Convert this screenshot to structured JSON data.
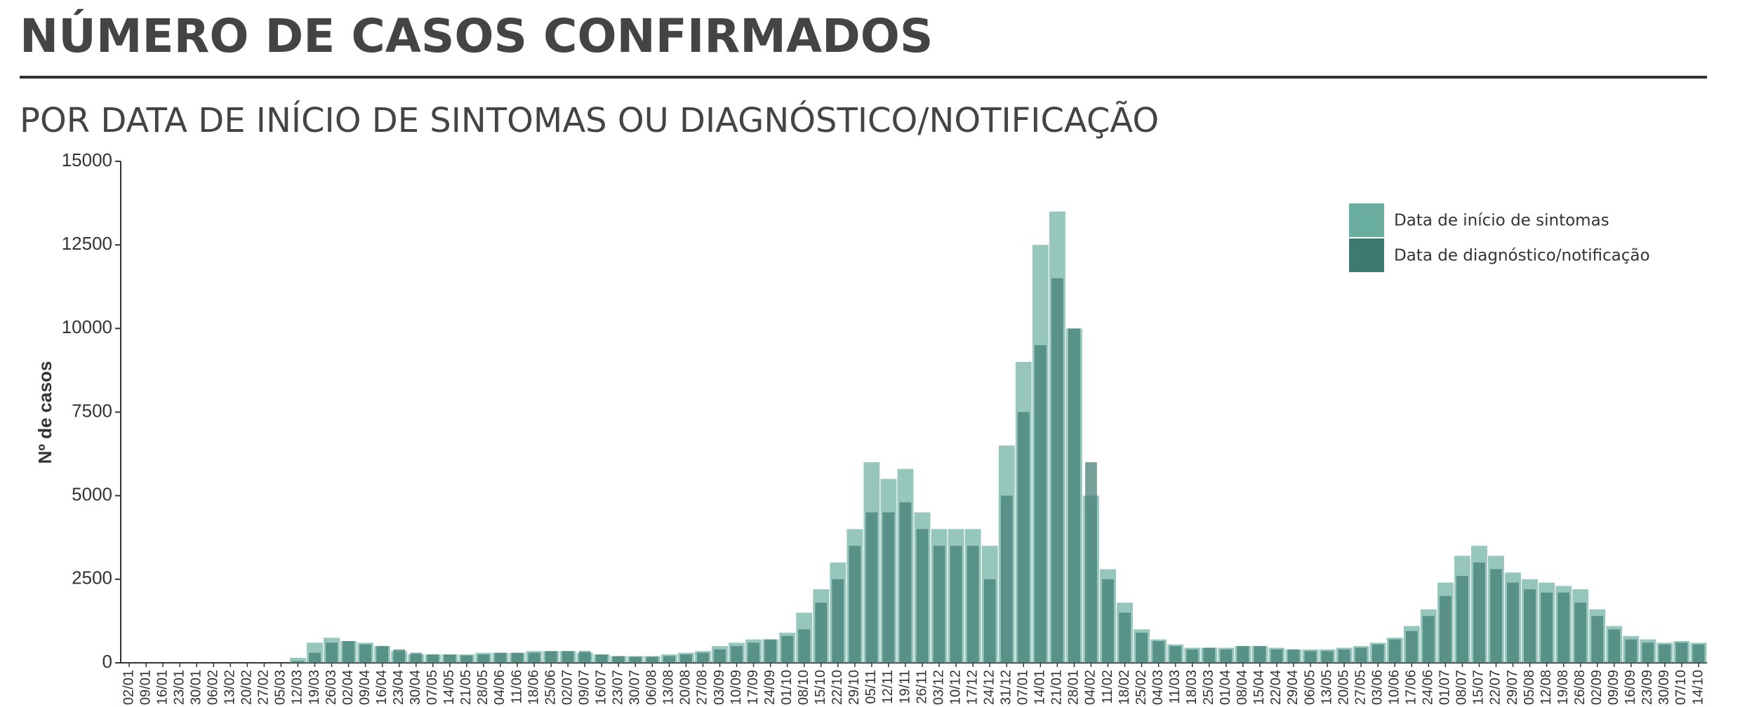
{
  "chart_data": {
    "type": "bar",
    "title": "NÚMERO DE CASOS CONFIRMADOS",
    "subtitle": "POR DATA DE INÍCIO DE SINTOMAS OU DIAGNÓSTICO/NOTIFICAÇÃO",
    "y_label": "Nº de casos",
    "categories": [
      "02/01",
      "09/01",
      "16/01",
      "23/01",
      "30/01",
      "06/02",
      "13/02",
      "20/02",
      "27/02",
      "05/03",
      "12/03",
      "19/03",
      "26/03",
      "02/04",
      "09/04",
      "16/04",
      "23/04",
      "30/04",
      "07/05",
      "14/05",
      "21/05",
      "28/05",
      "04/06",
      "11/06",
      "18/06",
      "25/06",
      "02/07",
      "09/07",
      "16/07",
      "23/07",
      "30/07",
      "06/08",
      "13/08",
      "20/08",
      "27/08",
      "03/09",
      "10/09",
      "17/09",
      "24/09",
      "01/10",
      "08/10",
      "15/10",
      "22/10",
      "29/10",
      "05/11",
      "12/11",
      "19/11",
      "26/11",
      "03/12",
      "10/12",
      "17/12",
      "24/12",
      "31/12",
      "07/01",
      "14/01",
      "21/01",
      "28/01",
      "04/02",
      "11/02",
      "18/02",
      "25/02",
      "04/03",
      "11/03",
      "18/03",
      "25/03",
      "01/04",
      "08/04",
      "15/04",
      "22/04",
      "29/04",
      "06/05",
      "13/05",
      "20/05",
      "27/05",
      "03/06",
      "10/06",
      "17/06",
      "24/06",
      "01/07",
      "08/07",
      "15/07",
      "22/07",
      "29/07",
      "05/08",
      "12/08",
      "19/08",
      "26/08",
      "02/09",
      "09/09",
      "16/09",
      "23/09",
      "30/09",
      "07/10",
      "14/10"
    ],
    "series": [
      {
        "name": "Data de início de sintomas",
        "color": "#6aaea0",
        "values": [
          0,
          0,
          0,
          0,
          0,
          0,
          0,
          0,
          0,
          0,
          150,
          600,
          750,
          650,
          600,
          500,
          350,
          250,
          250,
          250,
          250,
          300,
          300,
          300,
          350,
          350,
          350,
          300,
          250,
          200,
          200,
          200,
          250,
          300,
          350,
          500,
          600,
          700,
          700,
          900,
          1500,
          2200,
          3000,
          4000,
          6000,
          5500,
          5800,
          4500,
          4000,
          4000,
          4000,
          3500,
          6500,
          9000,
          12500,
          13500,
          10000,
          5000,
          2800,
          1800,
          1000,
          700,
          550,
          450,
          450,
          450,
          500,
          500,
          450,
          400,
          400,
          400,
          450,
          500,
          600,
          750,
          1100,
          1600,
          2400,
          3200,
          3500,
          3200,
          2700,
          2500,
          2400,
          2300,
          2200,
          1600,
          1100,
          800,
          700,
          600,
          650,
          600
        ]
      },
      {
        "name": "Data de diagnóstico/notificação",
        "color": "#3d7a72",
        "values": [
          0,
          0,
          0,
          0,
          0,
          0,
          0,
          0,
          0,
          0,
          50,
          300,
          600,
          650,
          550,
          500,
          400,
          300,
          250,
          250,
          220,
          250,
          300,
          300,
          300,
          350,
          350,
          350,
          250,
          200,
          180,
          180,
          200,
          250,
          300,
          400,
          500,
          600,
          700,
          800,
          1000,
          1800,
          2500,
          3500,
          4500,
          4500,
          4800,
          4000,
          3500,
          3500,
          3500,
          2500,
          5000,
          7500,
          9500,
          11500,
          10000,
          6000,
          2500,
          1500,
          900,
          650,
          500,
          400,
          450,
          400,
          500,
          500,
          400,
          400,
          350,
          350,
          400,
          450,
          550,
          700,
          950,
          1400,
          2000,
          2600,
          3000,
          2800,
          2400,
          2200,
          2100,
          2100,
          1800,
          1400,
          1000,
          700,
          600,
          550,
          600,
          550
        ]
      }
    ],
    "ylim": [
      0,
      15000
    ],
    "yticks": [
      0,
      2500,
      5000,
      7500,
      10000,
      12500,
      15000
    ],
    "legend": "top-right"
  }
}
